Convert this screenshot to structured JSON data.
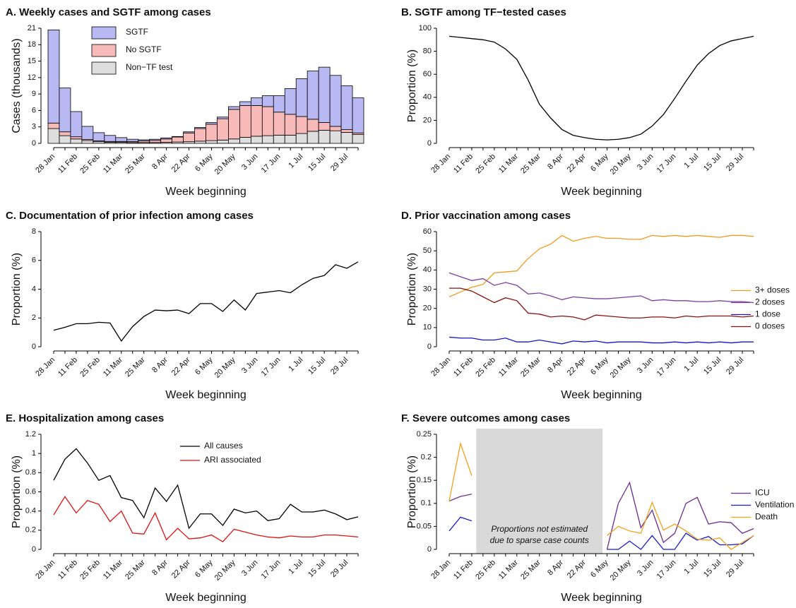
{
  "chart_data": [
    {
      "type": "bar",
      "stacked": true,
      "title": "A. Weekly cases and SGTF among cases",
      "ylabel": "Cases (thousands)",
      "xlabel": "Week beginning",
      "categories": [
        "28 Jan",
        null,
        "11 Feb",
        null,
        "25 Feb",
        null,
        "11 Mar",
        null,
        "25 Mar",
        null,
        "8 Apr",
        null,
        "22 Apr",
        null,
        "6 May",
        null,
        "20 May",
        null,
        "3 Jun",
        null,
        "17 Jun",
        null,
        "1 Jul",
        null,
        "15 Jul",
        null,
        "29 Jul",
        null
      ],
      "series": [
        {
          "name": "SGTF",
          "color": "#b8b8f2",
          "values": [
            17.0,
            8.0,
            4.6,
            2.4,
            1.5,
            1.1,
            0.7,
            0.4,
            0.2,
            0.2,
            0.2,
            0.1,
            0.2,
            0.2,
            0.3,
            0.3,
            0.5,
            0.7,
            1.4,
            2.0,
            3.0,
            4.7,
            6.9,
            8.8,
            10.1,
            9.3,
            8.0,
            6.4
          ]
        },
        {
          "name": "No SGTF",
          "color": "#f8b9b9",
          "values": [
            1.0,
            0.7,
            0.4,
            0.2,
            0.15,
            0.15,
            0.15,
            0.2,
            0.3,
            0.4,
            0.6,
            0.9,
            1.6,
            2.3,
            3.0,
            3.9,
            5.4,
            5.8,
            5.6,
            5.3,
            4.2,
            3.8,
            3.1,
            2.2,
            1.4,
            0.8,
            0.5,
            0.3
          ]
        },
        {
          "name": "Non−TF test",
          "color": "#dedede",
          "values": [
            2.7,
            1.4,
            0.8,
            0.5,
            0.3,
            0.2,
            0.2,
            0.15,
            0.15,
            0.15,
            0.2,
            0.25,
            0.3,
            0.4,
            0.5,
            0.6,
            0.8,
            1.1,
            1.3,
            1.4,
            1.5,
            1.5,
            1.8,
            2.2,
            2.4,
            2.3,
            2.0,
            1.6
          ]
        }
      ],
      "ylim": [
        0,
        21
      ],
      "yticks": [
        0,
        3,
        6,
        9,
        12,
        15,
        18,
        21
      ],
      "legend": "inside-top"
    },
    {
      "type": "line",
      "title": "B. SGTF among TF−tested cases",
      "ylabel": "Proportion (%)",
      "xlabel": "Week beginning",
      "categories": [
        "28 Jan",
        null,
        "11 Feb",
        null,
        "25 Feb",
        null,
        "11 Mar",
        null,
        "25 Mar",
        null,
        "8 Apr",
        null,
        "22 Apr",
        null,
        "6 May",
        null,
        "20 May",
        null,
        "3 Jun",
        null,
        "17 Jun",
        null,
        "1 Jul",
        null,
        "15 Jul",
        null,
        "29 Jul",
        null
      ],
      "values": [
        93,
        92,
        91,
        90,
        88,
        82,
        73,
        55,
        34,
        22,
        12,
        7,
        5,
        3.5,
        3,
        3.5,
        5,
        8,
        15,
        25,
        39,
        54,
        68,
        78,
        85,
        89,
        91,
        93
      ],
      "color": "#000000",
      "ylim": [
        0,
        100
      ],
      "yticks": [
        0,
        20,
        40,
        60,
        80,
        100
      ]
    },
    {
      "type": "line",
      "title": "C. Documentation of prior infection among cases",
      "ylabel": "Proportion (%)",
      "xlabel": "Week beginning",
      "categories": [
        "28 Jan",
        null,
        "11 Feb",
        null,
        "25 Feb",
        null,
        "11 Mar",
        null,
        "25 Mar",
        null,
        "8 Apr",
        null,
        "22 Apr",
        null,
        "6 May",
        null,
        "20 May",
        null,
        "3 Jun",
        null,
        "17 Jun",
        null,
        "1 Jul",
        null,
        "15 Jul",
        null,
        "29 Jul",
        null
      ],
      "values": [
        1.15,
        1.35,
        1.6,
        1.6,
        1.7,
        1.65,
        0.4,
        1.4,
        2.1,
        2.55,
        2.5,
        2.55,
        2.3,
        3.0,
        3.0,
        2.45,
        3.25,
        2.55,
        3.7,
        3.8,
        3.9,
        3.75,
        4.3,
        4.75,
        4.95,
        5.7,
        5.45,
        5.9
      ],
      "color": "#000000",
      "ylim": [
        0,
        8
      ],
      "yticks": [
        0,
        2,
        4,
        6,
        8
      ]
    },
    {
      "type": "line",
      "title": "D. Prior vaccination among cases",
      "ylabel": "Proportion (%)",
      "xlabel": "Week beginning",
      "categories": [
        "28 Jan",
        null,
        "11 Feb",
        null,
        "25 Feb",
        null,
        "11 Mar",
        null,
        "25 Mar",
        null,
        "8 Apr",
        null,
        "22 Apr",
        null,
        "6 May",
        null,
        "20 May",
        null,
        "3 Jun",
        null,
        "17 Jun",
        null,
        "1 Jul",
        null,
        "15 Jul",
        null,
        "29 Jul",
        null
      ],
      "series": [
        {
          "name": "3+ doses",
          "color": "#f39a1e",
          "values": [
            26,
            28.5,
            31,
            32.5,
            38.5,
            39,
            39.5,
            46,
            51,
            53.5,
            58,
            55,
            56.5,
            57.5,
            56.5,
            56.5,
            56,
            56,
            58,
            57.5,
            58,
            57.5,
            58,
            57.5,
            57,
            58,
            58,
            57.5
          ]
        },
        {
          "name": "2 doses",
          "color": "#7b3f9e",
          "values": [
            38.5,
            36.5,
            34.5,
            35.5,
            32,
            33.5,
            32,
            27.5,
            28,
            26.5,
            24.5,
            26,
            25.5,
            25,
            25,
            25.5,
            26,
            26.5,
            24,
            24.5,
            24,
            24,
            23.5,
            23.5,
            24,
            23.5,
            23.5,
            23
          ]
        },
        {
          "name": "1 dose",
          "color": "#1515c8",
          "values": [
            5,
            4.5,
            4.5,
            3.5,
            3.5,
            4.5,
            2.5,
            2.5,
            3.5,
            2.5,
            1.5,
            3,
            2.5,
            3,
            2,
            2.5,
            2.5,
            2.5,
            2,
            2,
            2.5,
            2,
            2.5,
            2,
            2.5,
            2,
            2.5,
            2.5
          ]
        },
        {
          "name": "0 doses",
          "color": "#8b1010",
          "values": [
            30.5,
            30.5,
            29,
            26,
            23,
            25.5,
            24,
            17.5,
            17,
            15.5,
            16,
            15.5,
            14,
            16.5,
            16,
            15.5,
            15,
            15,
            15.5,
            15.5,
            15,
            16,
            15.5,
            16,
            16,
            16,
            15.5,
            16
          ]
        }
      ],
      "ylim": [
        0,
        60
      ],
      "yticks": [
        0,
        10,
        20,
        30,
        40,
        50,
        60
      ],
      "legend": "right"
    },
    {
      "type": "line",
      "title": "E. Hospitalization among cases",
      "ylabel": "Proportion (%)",
      "xlabel": "Week beginning",
      "categories": [
        "28 Jan",
        null,
        "11 Feb",
        null,
        "25 Feb",
        null,
        "11 Mar",
        null,
        "25 Mar",
        null,
        "8 Apr",
        null,
        "22 Apr",
        null,
        "6 May",
        null,
        "20 May",
        null,
        "3 Jun",
        null,
        "17 Jun",
        null,
        "1 Jul",
        null,
        "15 Jul",
        null,
        "29 Jul",
        null
      ],
      "series": [
        {
          "name": "All causes",
          "color": "#000000",
          "values": [
            0.72,
            0.94,
            1.05,
            0.9,
            0.72,
            0.77,
            0.54,
            0.51,
            0.33,
            0.64,
            0.5,
            0.67,
            0.22,
            0.37,
            0.37,
            0.25,
            0.42,
            0.38,
            0.4,
            0.3,
            0.32,
            0.47,
            0.39,
            0.39,
            0.41,
            0.37,
            0.31,
            0.34
          ]
        },
        {
          "name": "ARI associated",
          "color": "#e01010",
          "values": [
            0.36,
            0.55,
            0.38,
            0.51,
            0.47,
            0.29,
            0.4,
            0.17,
            0.16,
            0.38,
            0.1,
            0.22,
            0.11,
            0.12,
            0.15,
            0.08,
            0.21,
            0.18,
            0.15,
            0.13,
            0.12,
            0.14,
            0.13,
            0.13,
            0.15,
            0.15,
            0.14,
            0.13
          ]
        }
      ],
      "ylim": [
        0,
        1.2
      ],
      "yticks": [
        0,
        0.2,
        0.4,
        0.6,
        0.8,
        1,
        1.2
      ],
      "legend": "inside-top"
    },
    {
      "type": "line",
      "title": "F. Severe outcomes among cases",
      "ylabel": "Proportion (%)",
      "xlabel": "Week beginning",
      "categories": [
        "28 Jan",
        null,
        "11 Feb",
        null,
        "25 Feb",
        null,
        "11 Mar",
        null,
        "25 Mar",
        null,
        "8 Apr",
        null,
        "22 Apr",
        null,
        "6 May",
        null,
        "20 May",
        null,
        "3 Jun",
        null,
        "17 Jun",
        null,
        "1 Jul",
        null,
        "15 Jul",
        null,
        "29 Jul",
        null
      ],
      "series": [
        {
          "name": "ICU",
          "color": "#6a2c8e",
          "values": [
            0.105,
            0.115,
            0.12,
            null,
            null,
            null,
            null,
            null,
            null,
            null,
            null,
            null,
            null,
            null,
            0,
            0.1,
            0.145,
            0.047,
            0.085,
            0.015,
            0.035,
            0.1,
            0.113,
            0.055,
            0.06,
            0.058,
            0.035,
            0.045
          ]
        },
        {
          "name": "Ventilation",
          "color": "#1a1ad0",
          "values": [
            0.04,
            0.07,
            0.062,
            null,
            null,
            null,
            null,
            null,
            null,
            null,
            null,
            null,
            null,
            null,
            0,
            0,
            0.018,
            0,
            0.03,
            0,
            0,
            0.035,
            0.02,
            0.028,
            0.01,
            0.01,
            0.012,
            0.03
          ]
        },
        {
          "name": "Death",
          "color": "#f2a21a",
          "values": [
            0.105,
            0.23,
            0.16,
            null,
            null,
            null,
            null,
            null,
            null,
            null,
            null,
            null,
            null,
            null,
            0.03,
            0.05,
            0.04,
            0.035,
            0.102,
            0.042,
            0.055,
            0.04,
            0.022,
            0.02,
            0.025,
            0,
            0.015,
            0.03
          ]
        }
      ],
      "ylim": [
        0,
        0.25
      ],
      "yticks": [
        0,
        0.05,
        0.1,
        0.15,
        0.2,
        0.25
      ],
      "legend": "right",
      "annotation": [
        "Proportions not estimated",
        "due to sparse case counts"
      ]
    }
  ]
}
